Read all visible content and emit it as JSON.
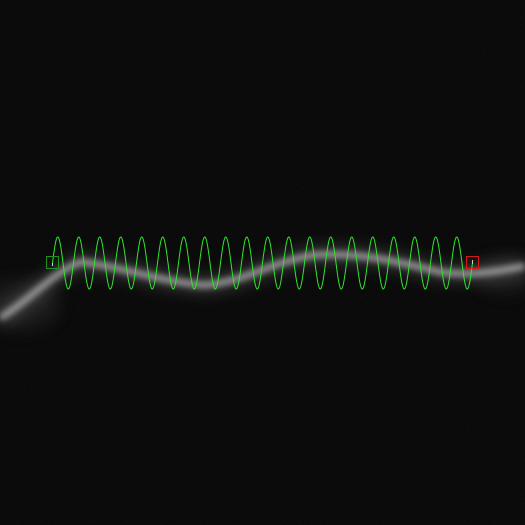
{
  "colors": {
    "background": "#060606",
    "trace": "#2fe62f",
    "start_marker": "#1f8f1f",
    "end_marker": "#d11a1a",
    "filament": "#b8b8b8"
  },
  "overlay": {
    "wave_cycles": 20,
    "start_marker_icon": "green-square-icon",
    "end_marker_icon": "red-square-icon"
  }
}
